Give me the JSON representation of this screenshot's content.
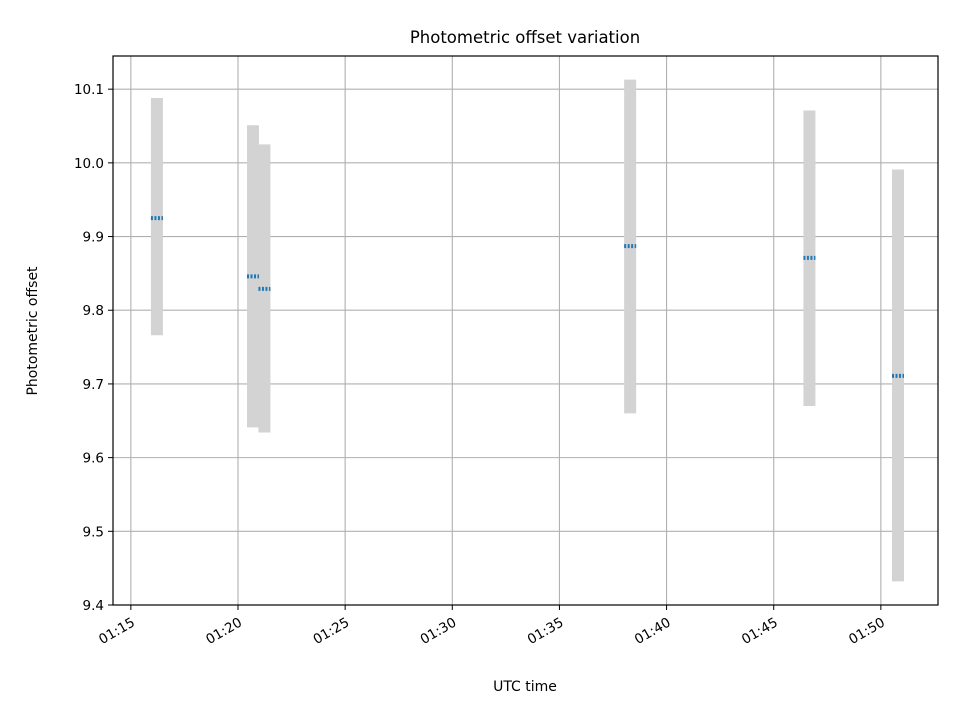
{
  "chart_data": {
    "type": "scatter",
    "title": "Photometric offset variation",
    "xlabel": "UTC time",
    "ylabel": "Photometric offset",
    "x_ticks": [
      "01:15",
      "01:20",
      "01:25",
      "01:30",
      "01:35",
      "01:40",
      "01:45",
      "01:50"
    ],
    "y_ticks": [
      "9.4",
      "9.5",
      "9.6",
      "9.7",
      "9.8",
      "9.9",
      "10.0",
      "10.1"
    ],
    "xlim": [
      "01:14:10",
      "01:52:40"
    ],
    "ylim": [
      9.4,
      10.145
    ],
    "grid": true,
    "series": [
      {
        "marker_color": "#1f77b4",
        "errorbar_color": "#d3d3d3",
        "points": [
          {
            "x": "01:16:13",
            "y": 9.925,
            "yerr_low": 9.766,
            "yerr_high": 10.088
          },
          {
            "x": "01:20:42",
            "y": 9.846,
            "yerr_low": 9.641,
            "yerr_high": 10.051
          },
          {
            "x": "01:21:14",
            "y": 9.829,
            "yerr_low": 9.634,
            "yerr_high": 10.025
          },
          {
            "x": "01:38:18",
            "y": 9.887,
            "yerr_low": 9.66,
            "yerr_high": 10.113
          },
          {
            "x": "01:46:40",
            "y": 9.871,
            "yerr_low": 9.67,
            "yerr_high": 10.071
          },
          {
            "x": "01:50:48",
            "y": 9.711,
            "yerr_low": 9.432,
            "yerr_high": 9.991
          }
        ]
      }
    ]
  }
}
